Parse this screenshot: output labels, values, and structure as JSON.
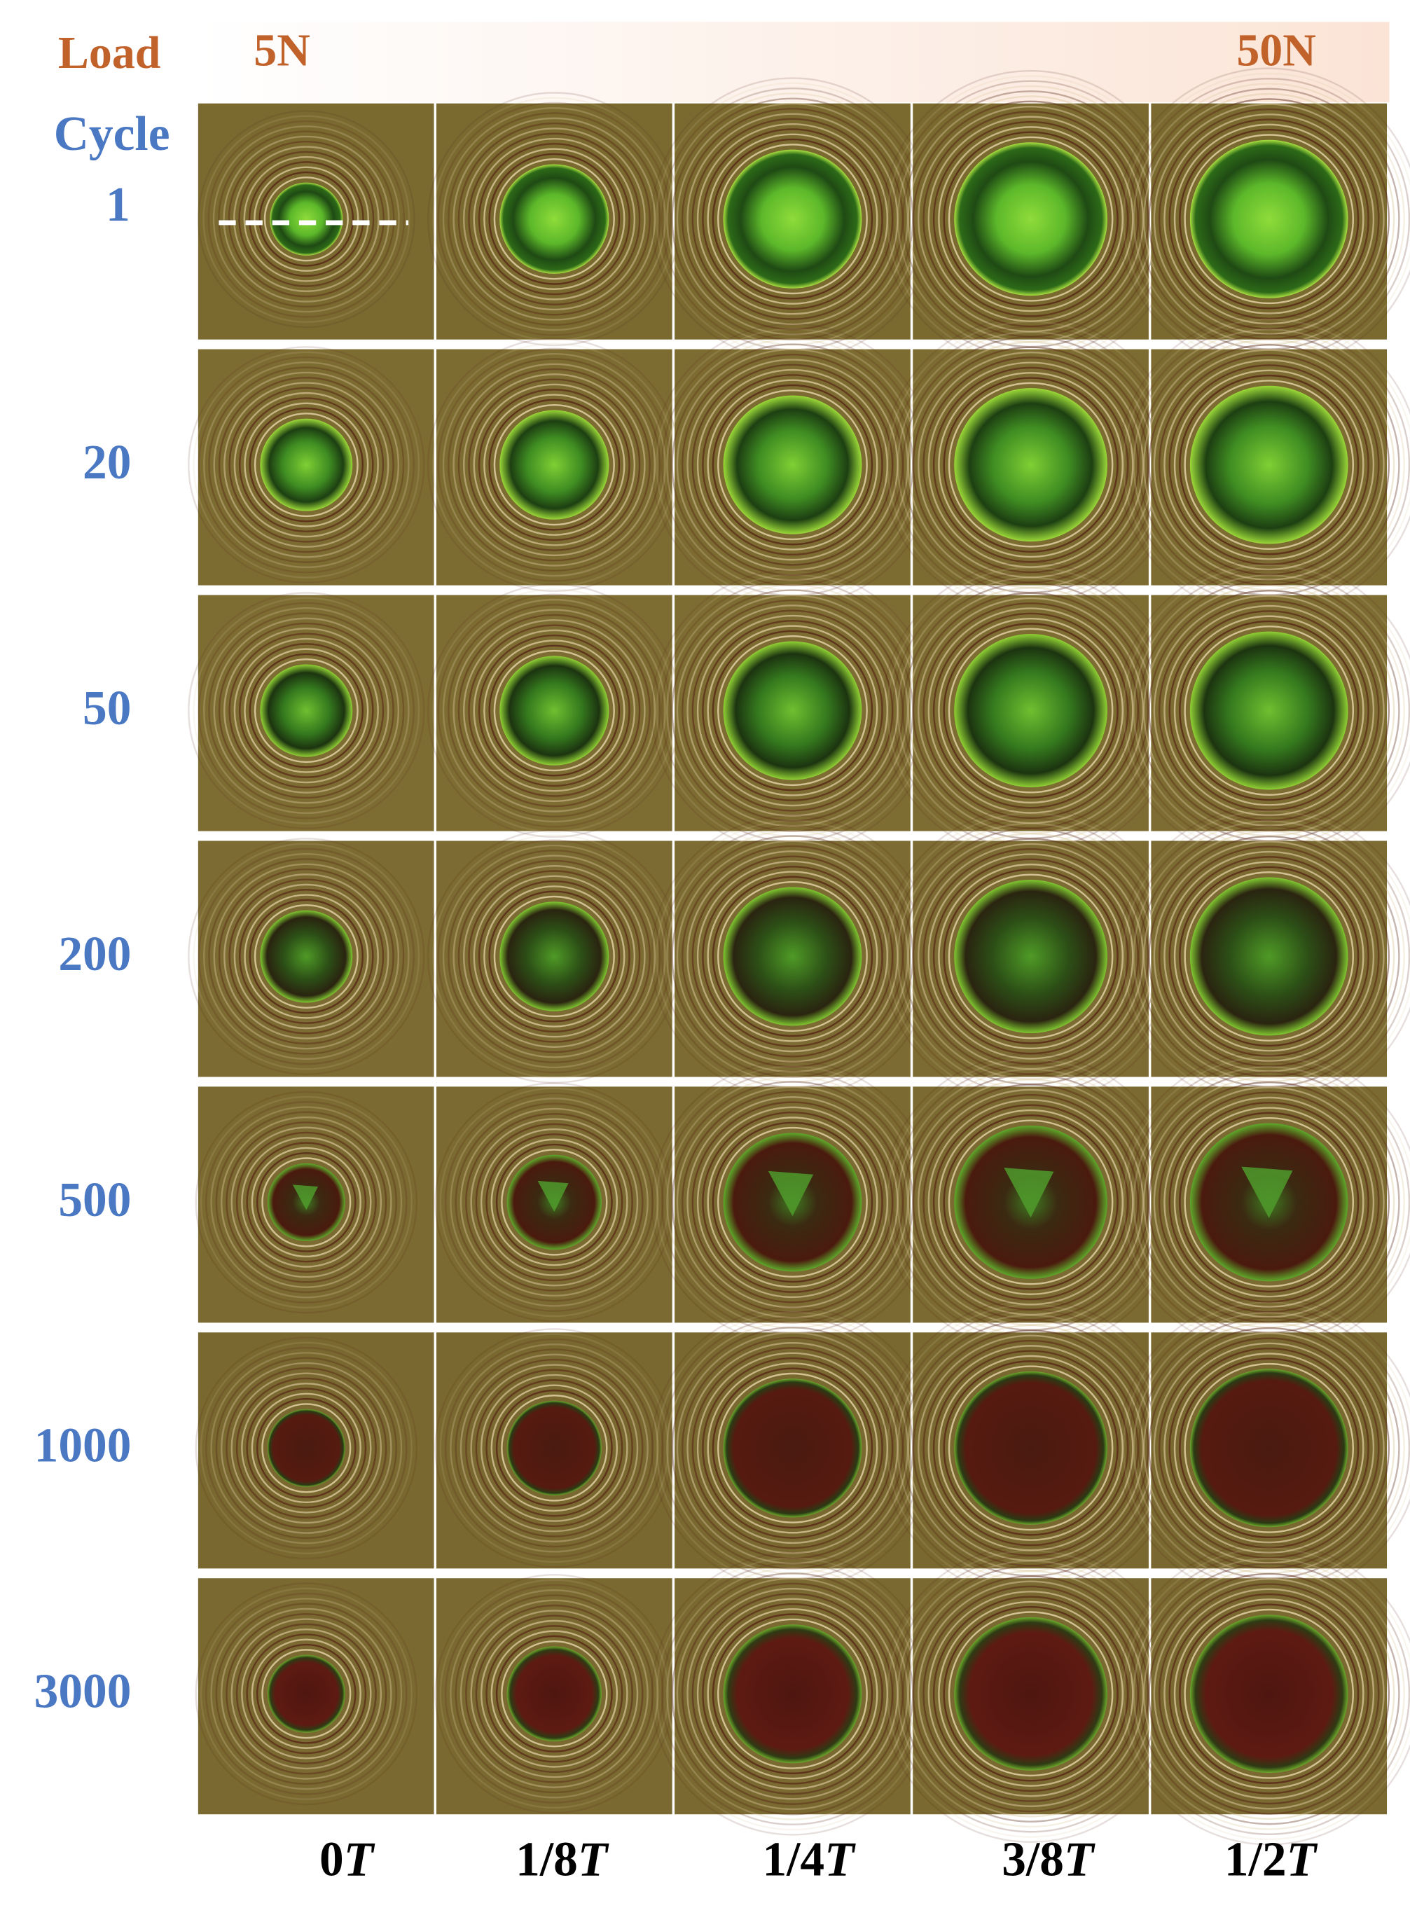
{
  "header": {
    "load_label": "Load",
    "load_start": "5N",
    "load_end": "50N"
  },
  "rows": {
    "label": "Cycle",
    "cycles": [
      "1",
      "20",
      "50",
      "200",
      "500",
      "1000",
      "3000"
    ]
  },
  "columns": [
    {
      "fraction": "0",
      "symbol": "T"
    },
    {
      "fraction": "1/8",
      "symbol": "T"
    },
    {
      "fraction": "1/4",
      "symbol": "T"
    },
    {
      "fraction": "3/8",
      "symbol": "T"
    },
    {
      "fraction": "1/2",
      "symbol": "T"
    }
  ]
}
